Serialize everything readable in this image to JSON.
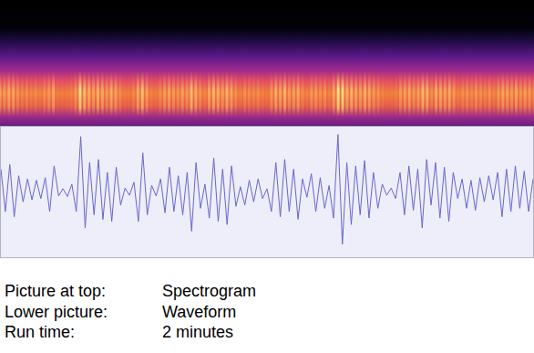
{
  "chart_data": {
    "type": "line",
    "color": "#6666cc",
    "tick_labels": false,
    "xlim": [
      0,
      120
    ],
    "ylim": [
      -1,
      1
    ],
    "x": [
      0,
      1,
      2,
      3,
      4,
      5,
      6,
      7,
      8,
      9,
      10,
      11,
      12,
      13,
      14,
      15,
      16,
      17,
      18,
      19,
      20,
      21,
      22,
      23,
      24,
      25,
      26,
      27,
      28,
      29,
      30,
      31,
      32,
      33,
      34,
      35,
      36,
      37,
      38,
      39,
      40,
      41,
      42,
      43,
      44,
      45,
      46,
      47,
      48,
      49,
      50,
      51,
      52,
      53,
      54,
      55,
      56,
      57,
      58,
      59,
      60,
      61,
      62,
      63,
      64,
      65,
      66,
      67,
      68,
      69,
      70,
      71,
      72,
      73,
      74,
      75,
      76,
      77,
      78,
      79,
      80,
      81,
      82,
      83,
      84,
      85,
      86,
      87,
      88,
      89,
      90,
      91,
      92,
      93,
      94,
      95,
      96,
      97,
      98,
      99,
      100,
      101,
      102,
      103,
      104,
      105,
      106,
      107,
      108,
      109,
      110,
      111,
      112,
      113,
      114,
      115,
      116,
      117,
      118,
      119,
      120
    ],
    "values": [
      0.35,
      -0.3,
      0.42,
      -0.38,
      0.25,
      -0.15,
      0.2,
      -0.12,
      0.18,
      -0.1,
      0.22,
      -0.3,
      0.4,
      -0.06,
      0.05,
      -0.07,
      0.12,
      -0.3,
      0.85,
      -0.55,
      0.45,
      -0.35,
      0.5,
      -0.42,
      0.3,
      -0.45,
      0.38,
      -0.2,
      0.06,
      -0.05,
      0.15,
      -0.45,
      0.6,
      -0.35,
      0.1,
      -0.06,
      0.2,
      -0.32,
      0.38,
      -0.3,
      0.25,
      -0.35,
      0.3,
      -0.6,
      0.45,
      -0.25,
      0.12,
      -0.4,
      0.52,
      -0.45,
      0.35,
      -0.5,
      0.4,
      -0.22,
      0.08,
      -0.2,
      0.18,
      -0.15,
      0.2,
      -0.1,
      0.05,
      -0.3,
      0.45,
      -0.38,
      0.5,
      -0.3,
      0.35,
      -0.42,
      0.2,
      -0.08,
      0.28,
      -0.3,
      0.22,
      -0.25,
      0.1,
      -0.4,
      0.88,
      -0.8,
      0.45,
      -0.5,
      0.4,
      -0.35,
      0.48,
      -0.4,
      0.3,
      -0.25,
      0.12,
      -0.05,
      0.06,
      -0.1,
      0.3,
      -0.35,
      0.4,
      -0.28,
      0.35,
      -0.55,
      0.5,
      -0.2,
      0.45,
      -0.4,
      0.38,
      -0.45,
      0.3,
      -0.1,
      0.2,
      -0.25,
      0.18,
      -0.28,
      0.22,
      -0.15,
      0.25,
      -0.12,
      0.3,
      -0.38,
      0.35,
      -0.3,
      0.4,
      -0.25,
      0.32,
      -0.3,
      0.2
    ]
  },
  "caption": {
    "rows": [
      [
        "Picture at top:",
        "Spectrogram"
      ],
      [
        "Lower picture:",
        "Waveform"
      ],
      [
        "Run time:",
        "2 minutes"
      ]
    ]
  }
}
